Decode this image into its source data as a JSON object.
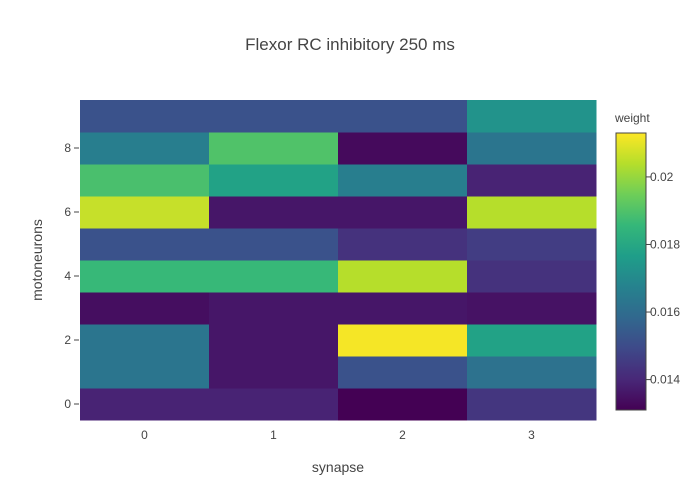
{
  "chart_data": {
    "type": "heatmap",
    "title": "Flexor RC inhibitory 250 ms",
    "xlabel": "synapse",
    "ylabel": "motoneurons",
    "x": [
      0,
      1,
      2,
      3
    ],
    "y": [
      0,
      1,
      2,
      3,
      4,
      5,
      6,
      7,
      8,
      9
    ],
    "x_tick_labels": [
      "0",
      "1",
      "2",
      "3"
    ],
    "y_tick_labels": [
      "0",
      "2",
      "4",
      "6",
      "8"
    ],
    "y_tick_values": [
      0,
      2,
      4,
      6,
      8
    ],
    "z": [
      [
        0.0139,
        0.0139,
        0.0131,
        0.0144
      ],
      [
        0.0163,
        0.0136,
        0.0152,
        0.0162
      ],
      [
        0.0163,
        0.0136,
        0.0212,
        0.0178
      ],
      [
        0.0134,
        0.0136,
        0.0136,
        0.0135
      ],
      [
        0.0186,
        0.0186,
        0.0204,
        0.0143
      ],
      [
        0.0152,
        0.0152,
        0.0143,
        0.0146
      ],
      [
        0.0206,
        0.0136,
        0.0136,
        0.0204
      ],
      [
        0.0189,
        0.0178,
        0.0166,
        0.0139
      ],
      [
        0.0166,
        0.019,
        0.0133,
        0.0163
      ],
      [
        0.0152,
        0.0152,
        0.0152,
        0.0173
      ]
    ],
    "colorbar": {
      "title": "weight",
      "tick_values": [
        0.014,
        0.016,
        0.018,
        0.02
      ],
      "tick_labels": [
        "0.014",
        "0.016",
        "0.018",
        "0.02"
      ],
      "range": [
        0.0131,
        0.0213
      ]
    },
    "colorscale": "Viridis",
    "grid": false
  }
}
